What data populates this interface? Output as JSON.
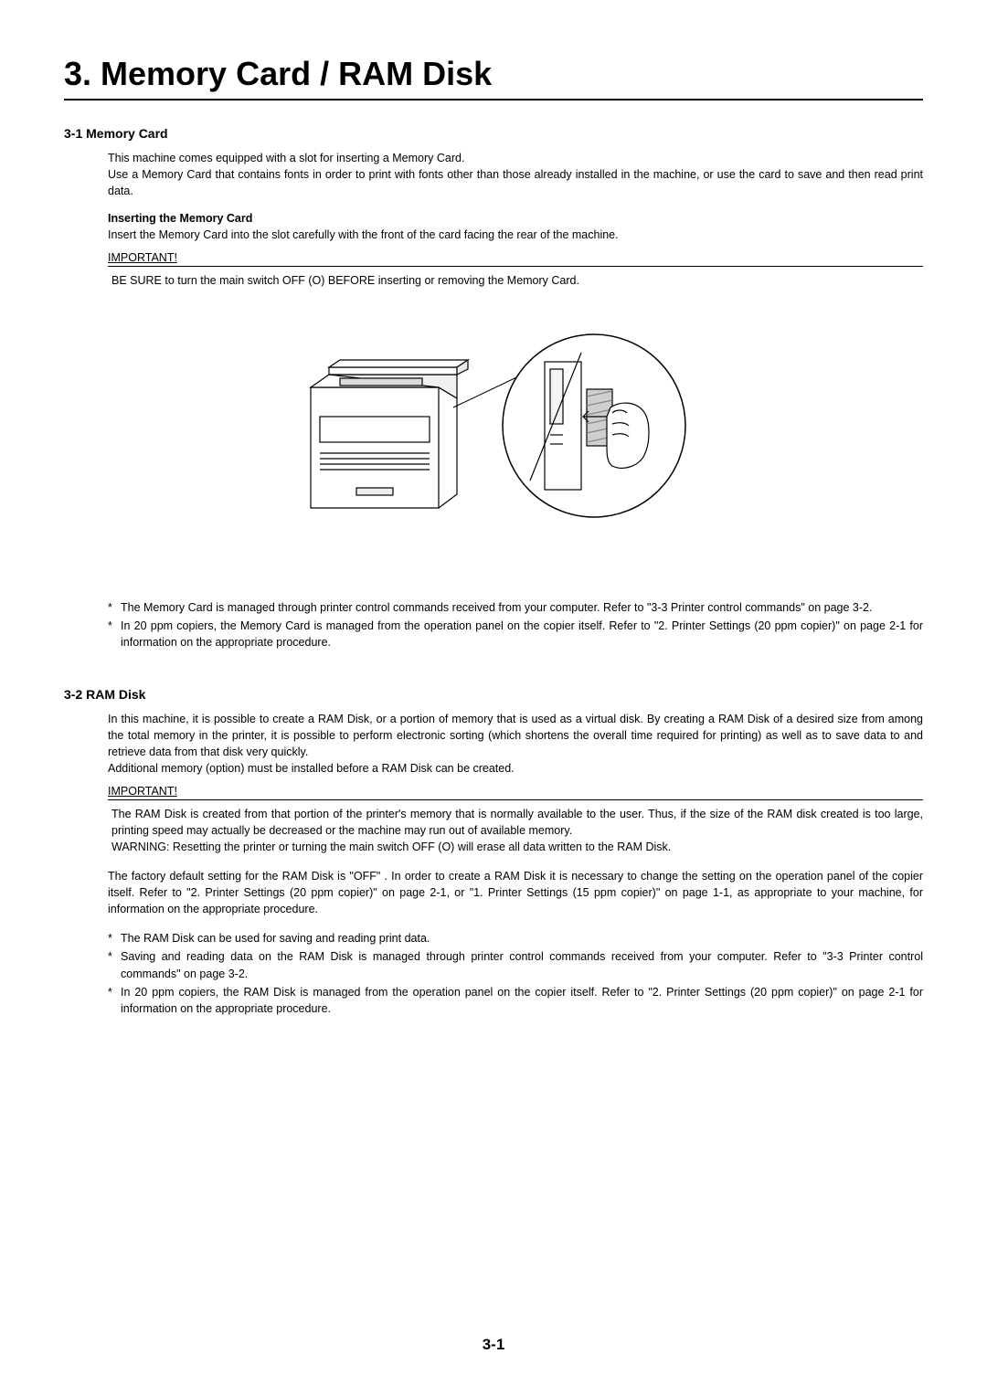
{
  "page": {
    "chapter_title": "3. Memory Card / RAM Disk",
    "page_number": "3-1"
  },
  "section1": {
    "heading": "3-1  Memory Card",
    "intro": "This machine comes equipped with a slot for inserting a Memory Card.\nUse a Memory Card that contains fonts in order to print with fonts other than those already installed in the machine, or use the card to save and then read print data.",
    "sub_heading": "Inserting the Memory Card",
    "sub_body": "Insert the Memory Card into the slot carefully with the front of the card facing the rear of the machine.",
    "important_label": "IMPORTANT!",
    "important_body": "BE SURE to turn the main switch OFF (O) BEFORE inserting or removing the Memory Card.",
    "bullets": [
      "The Memory Card is managed through printer control commands received from your computer. Refer to \"3-3  Printer control commands\" on page 3-2.",
      "In 20 ppm copiers, the Memory Card is managed from the operation panel on the copier itself. Refer to \"2. Printer Settings (20 ppm copier)\" on page 2-1 for information on the appropriate procedure."
    ]
  },
  "section2": {
    "heading": "3-2  RAM Disk",
    "intro": "In this machine, it is possible to create a RAM Disk, or a portion of memory that is used as a virtual disk. By creating a RAM Disk of a desired size from among the total memory in the printer, it is possible to perform electronic sorting (which shortens the overall time required for printing) as well as to save data to and retrieve data from that disk very quickly.\nAdditional memory (option) must be installed before a RAM Disk can be created.",
    "important_label": "IMPORTANT!",
    "important_body": "The RAM Disk is created from that portion of the printer's memory that is normally available to the user. Thus, if the size of the RAM disk created is too large, printing speed may actually be decreased or the machine may run out of available memory.\nWARNING: Resetting the printer or turning the main switch OFF (O) will erase all data written to the RAM Disk.",
    "extra_para": "The factory default setting for the RAM Disk is \"OFF\" . In order to create a RAM Disk it is necessary to change the setting on the operation panel of the copier itself. Refer to \"2. Printer Settings (20 ppm copier)\" on page 2-1, or \"1. Printer Settings (15 ppm copier)\" on page 1-1, as appropriate to your machine, for information on the appropriate procedure.",
    "bullets": [
      "The RAM Disk can be used for saving and reading print data.",
      "Saving and reading data on the RAM Disk is managed through printer control commands received from your computer. Refer to \"3-3  Printer control commands\" on page 3-2.",
      "In 20 ppm copiers, the RAM Disk is managed from the operation panel on the copier itself. Refer to \"2. Printer Settings (20 ppm copier)\" on page 2-1 for information on the appropriate procedure."
    ]
  },
  "figure": {
    "stroke": "#000000",
    "fill_light": "#ffffff",
    "hatch": "#999999"
  }
}
